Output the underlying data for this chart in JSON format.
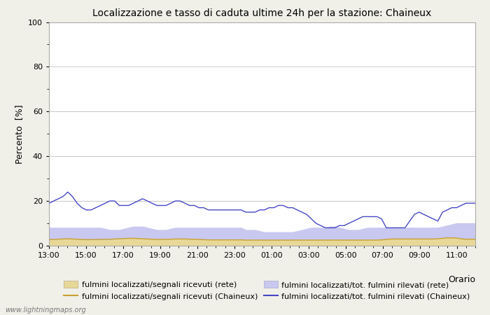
{
  "title": "Localizzazione e tasso di caduta ultime 24h per la stazione: Chaineux",
  "xlabel": "Orario",
  "ylabel": "Percento  [%]",
  "xlim": [
    0,
    92
  ],
  "ylim": [
    0,
    100
  ],
  "yticks": [
    0,
    20,
    40,
    60,
    80,
    100
  ],
  "ytick_minor": [
    10,
    30,
    50,
    70,
    90
  ],
  "xtick_labels": [
    "13:00",
    "15:00",
    "17:00",
    "19:00",
    "21:00",
    "23:00",
    "01:00",
    "03:00",
    "05:00",
    "07:00",
    "09:00",
    "11:00"
  ],
  "xtick_positions": [
    0,
    8,
    16,
    24,
    32,
    40,
    48,
    56,
    64,
    72,
    80,
    88
  ],
  "bg_color": "#f0f0e8",
  "plot_bg_color": "#ffffff",
  "grid_color": "#c8c8c8",
  "watermark": "www.lightningmaps.org",
  "legend": [
    {
      "label": "fulmini localizzati/segnali ricevuti (rete)",
      "color": "#e8d898",
      "type": "fill"
    },
    {
      "label": "fulmini localizzati/segnali ricevuti (Chaineux)",
      "color": "#c8a030",
      "type": "line"
    },
    {
      "label": "fulmini localizzati/tot. fulmini rilevati (rete)",
      "color": "#c8c8f0",
      "type": "fill"
    },
    {
      "label": "fulmini localizzati/tot. fulmini rilevati (Chaineux)",
      "color": "#4848c8",
      "type": "line"
    }
  ],
  "series_rete_segnali": [
    2.5,
    2.5,
    2.8,
    2.8,
    3.0,
    2.8,
    2.8,
    2.6,
    2.5,
    2.4,
    2.5,
    2.5,
    2.5,
    2.5,
    2.7,
    2.8,
    3.0,
    3.2,
    3.3,
    3.2,
    3.0,
    2.8,
    2.8,
    2.8,
    2.8,
    2.9,
    3.0,
    3.0,
    3.0,
    3.0,
    2.9,
    2.8,
    2.7,
    2.6,
    2.5,
    2.5,
    2.5,
    2.5,
    2.5,
    2.5,
    2.5,
    2.5,
    2.5,
    2.5,
    2.5,
    2.4,
    2.4,
    2.4,
    2.4,
    2.4,
    2.4,
    2.4,
    2.4,
    2.5,
    2.5,
    2.5,
    2.5,
    2.5,
    2.5,
    2.5,
    2.5,
    2.5,
    2.5,
    2.5,
    2.5,
    2.5,
    2.5,
    2.5,
    2.5,
    2.5,
    2.5,
    2.6,
    2.8,
    3.0,
    3.0,
    3.0,
    3.0,
    3.0,
    3.0,
    3.0,
    3.0,
    3.0,
    3.0,
    3.0,
    3.2,
    3.5,
    3.5,
    3.3,
    3.0,
    2.8,
    2.8,
    2.8
  ],
  "series_chaineux_segnali": [
    2.8,
    2.8,
    2.9,
    3.0,
    3.1,
    3.0,
    2.9,
    2.8,
    2.7,
    2.7,
    2.8,
    2.8,
    2.8,
    2.9,
    3.0,
    3.1,
    3.2,
    3.3,
    3.3,
    3.2,
    3.1,
    3.0,
    2.9,
    2.8,
    2.8,
    2.8,
    2.9,
    3.0,
    3.0,
    3.0,
    2.9,
    2.9,
    2.8,
    2.7,
    2.6,
    2.6,
    2.6,
    2.6,
    2.6,
    2.6,
    2.6,
    2.6,
    2.5,
    2.5,
    2.5,
    2.5,
    2.5,
    2.5,
    2.5,
    2.5,
    2.5,
    2.5,
    2.5,
    2.5,
    2.5,
    2.5,
    2.5,
    2.5,
    2.5,
    2.5,
    2.5,
    2.5,
    2.5,
    2.5,
    2.5,
    2.5,
    2.5,
    2.5,
    2.5,
    2.5,
    2.5,
    2.6,
    2.8,
    3.0,
    3.0,
    3.0,
    3.0,
    3.0,
    3.0,
    3.0,
    3.0,
    3.0,
    3.0,
    3.1,
    3.3,
    3.5,
    3.5,
    3.4,
    3.1,
    2.9,
    2.9,
    2.9
  ],
  "series_rete_fulmini": [
    8.0,
    8.0,
    8.0,
    8.0,
    8.0,
    8.0,
    8.0,
    8.0,
    8.0,
    8.0,
    8.0,
    8.0,
    7.5,
    7.0,
    7.0,
    7.0,
    7.5,
    8.0,
    8.5,
    8.5,
    8.5,
    8.0,
    7.5,
    7.0,
    7.0,
    7.0,
    7.5,
    8.0,
    8.0,
    8.0,
    8.0,
    8.0,
    8.0,
    8.0,
    8.0,
    8.0,
    8.0,
    8.0,
    8.0,
    8.0,
    8.0,
    8.0,
    7.0,
    7.0,
    7.0,
    6.5,
    6.0,
    6.0,
    6.0,
    6.0,
    6.0,
    6.0,
    6.0,
    6.5,
    7.0,
    7.5,
    8.0,
    8.0,
    8.0,
    8.0,
    8.5,
    8.5,
    8.0,
    7.5,
    7.0,
    7.0,
    7.0,
    7.5,
    8.0,
    8.0,
    8.0,
    8.0,
    8.0,
    8.0,
    8.0,
    8.0,
    8.0,
    8.0,
    8.0,
    8.0,
    8.0,
    8.0,
    8.0,
    8.0,
    8.5,
    9.0,
    9.5,
    10.0,
    10.0,
    10.0,
    10.0,
    10.0
  ],
  "series_chaineux_fulmini": [
    19,
    20,
    21,
    22,
    24,
    22,
    19,
    17,
    16,
    16,
    17,
    18,
    19,
    20,
    20,
    18,
    18,
    18,
    19,
    20,
    21,
    20,
    19,
    18,
    18,
    18,
    19,
    20,
    20,
    19,
    18,
    18,
    17,
    17,
    16,
    16,
    16,
    16,
    16,
    16,
    16,
    16,
    15,
    15,
    15,
    16,
    16,
    17,
    17,
    18,
    18,
    17,
    17,
    16,
    15,
    14,
    12,
    10,
    9,
    8,
    8,
    8,
    9,
    9,
    10,
    11,
    12,
    13,
    13,
    13,
    13,
    12,
    8,
    8,
    8,
    8,
    8,
    11,
    14,
    15,
    14,
    13,
    12,
    11,
    15,
    16,
    17,
    17,
    18,
    19,
    19,
    19
  ]
}
